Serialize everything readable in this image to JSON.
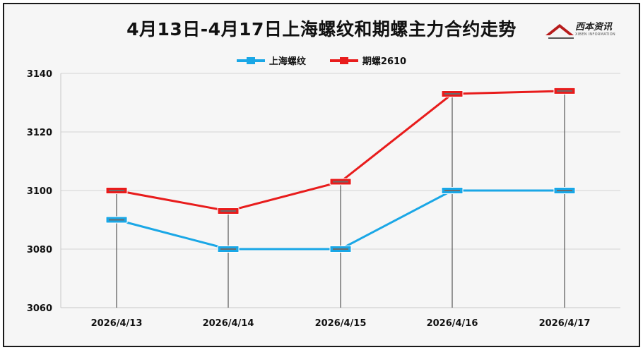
{
  "chart_data": {
    "type": "line",
    "title": "4月13日-4月17日上海螺纹和期螺主力合约走势",
    "categories": [
      "2026/4/13",
      "2026/4/14",
      "2026/4/15",
      "2026/4/16",
      "2026/4/17"
    ],
    "series": [
      {
        "name": "上海螺纹",
        "color": "#1aa7e6",
        "values": [
          3090,
          3080,
          3080,
          3100,
          3100
        ]
      },
      {
        "name": "期螺2610",
        "color": "#e81c1c",
        "values": [
          3100,
          3093,
          3103,
          3133,
          3134
        ]
      }
    ],
    "ylim": [
      3060,
      3140
    ],
    "yticks": [
      3060,
      3080,
      3100,
      3120,
      3140
    ],
    "grid": true,
    "legend_position": "top"
  },
  "logo": {
    "name": "西本资讯",
    "subtitle": "XIBEN INFORMATION"
  }
}
